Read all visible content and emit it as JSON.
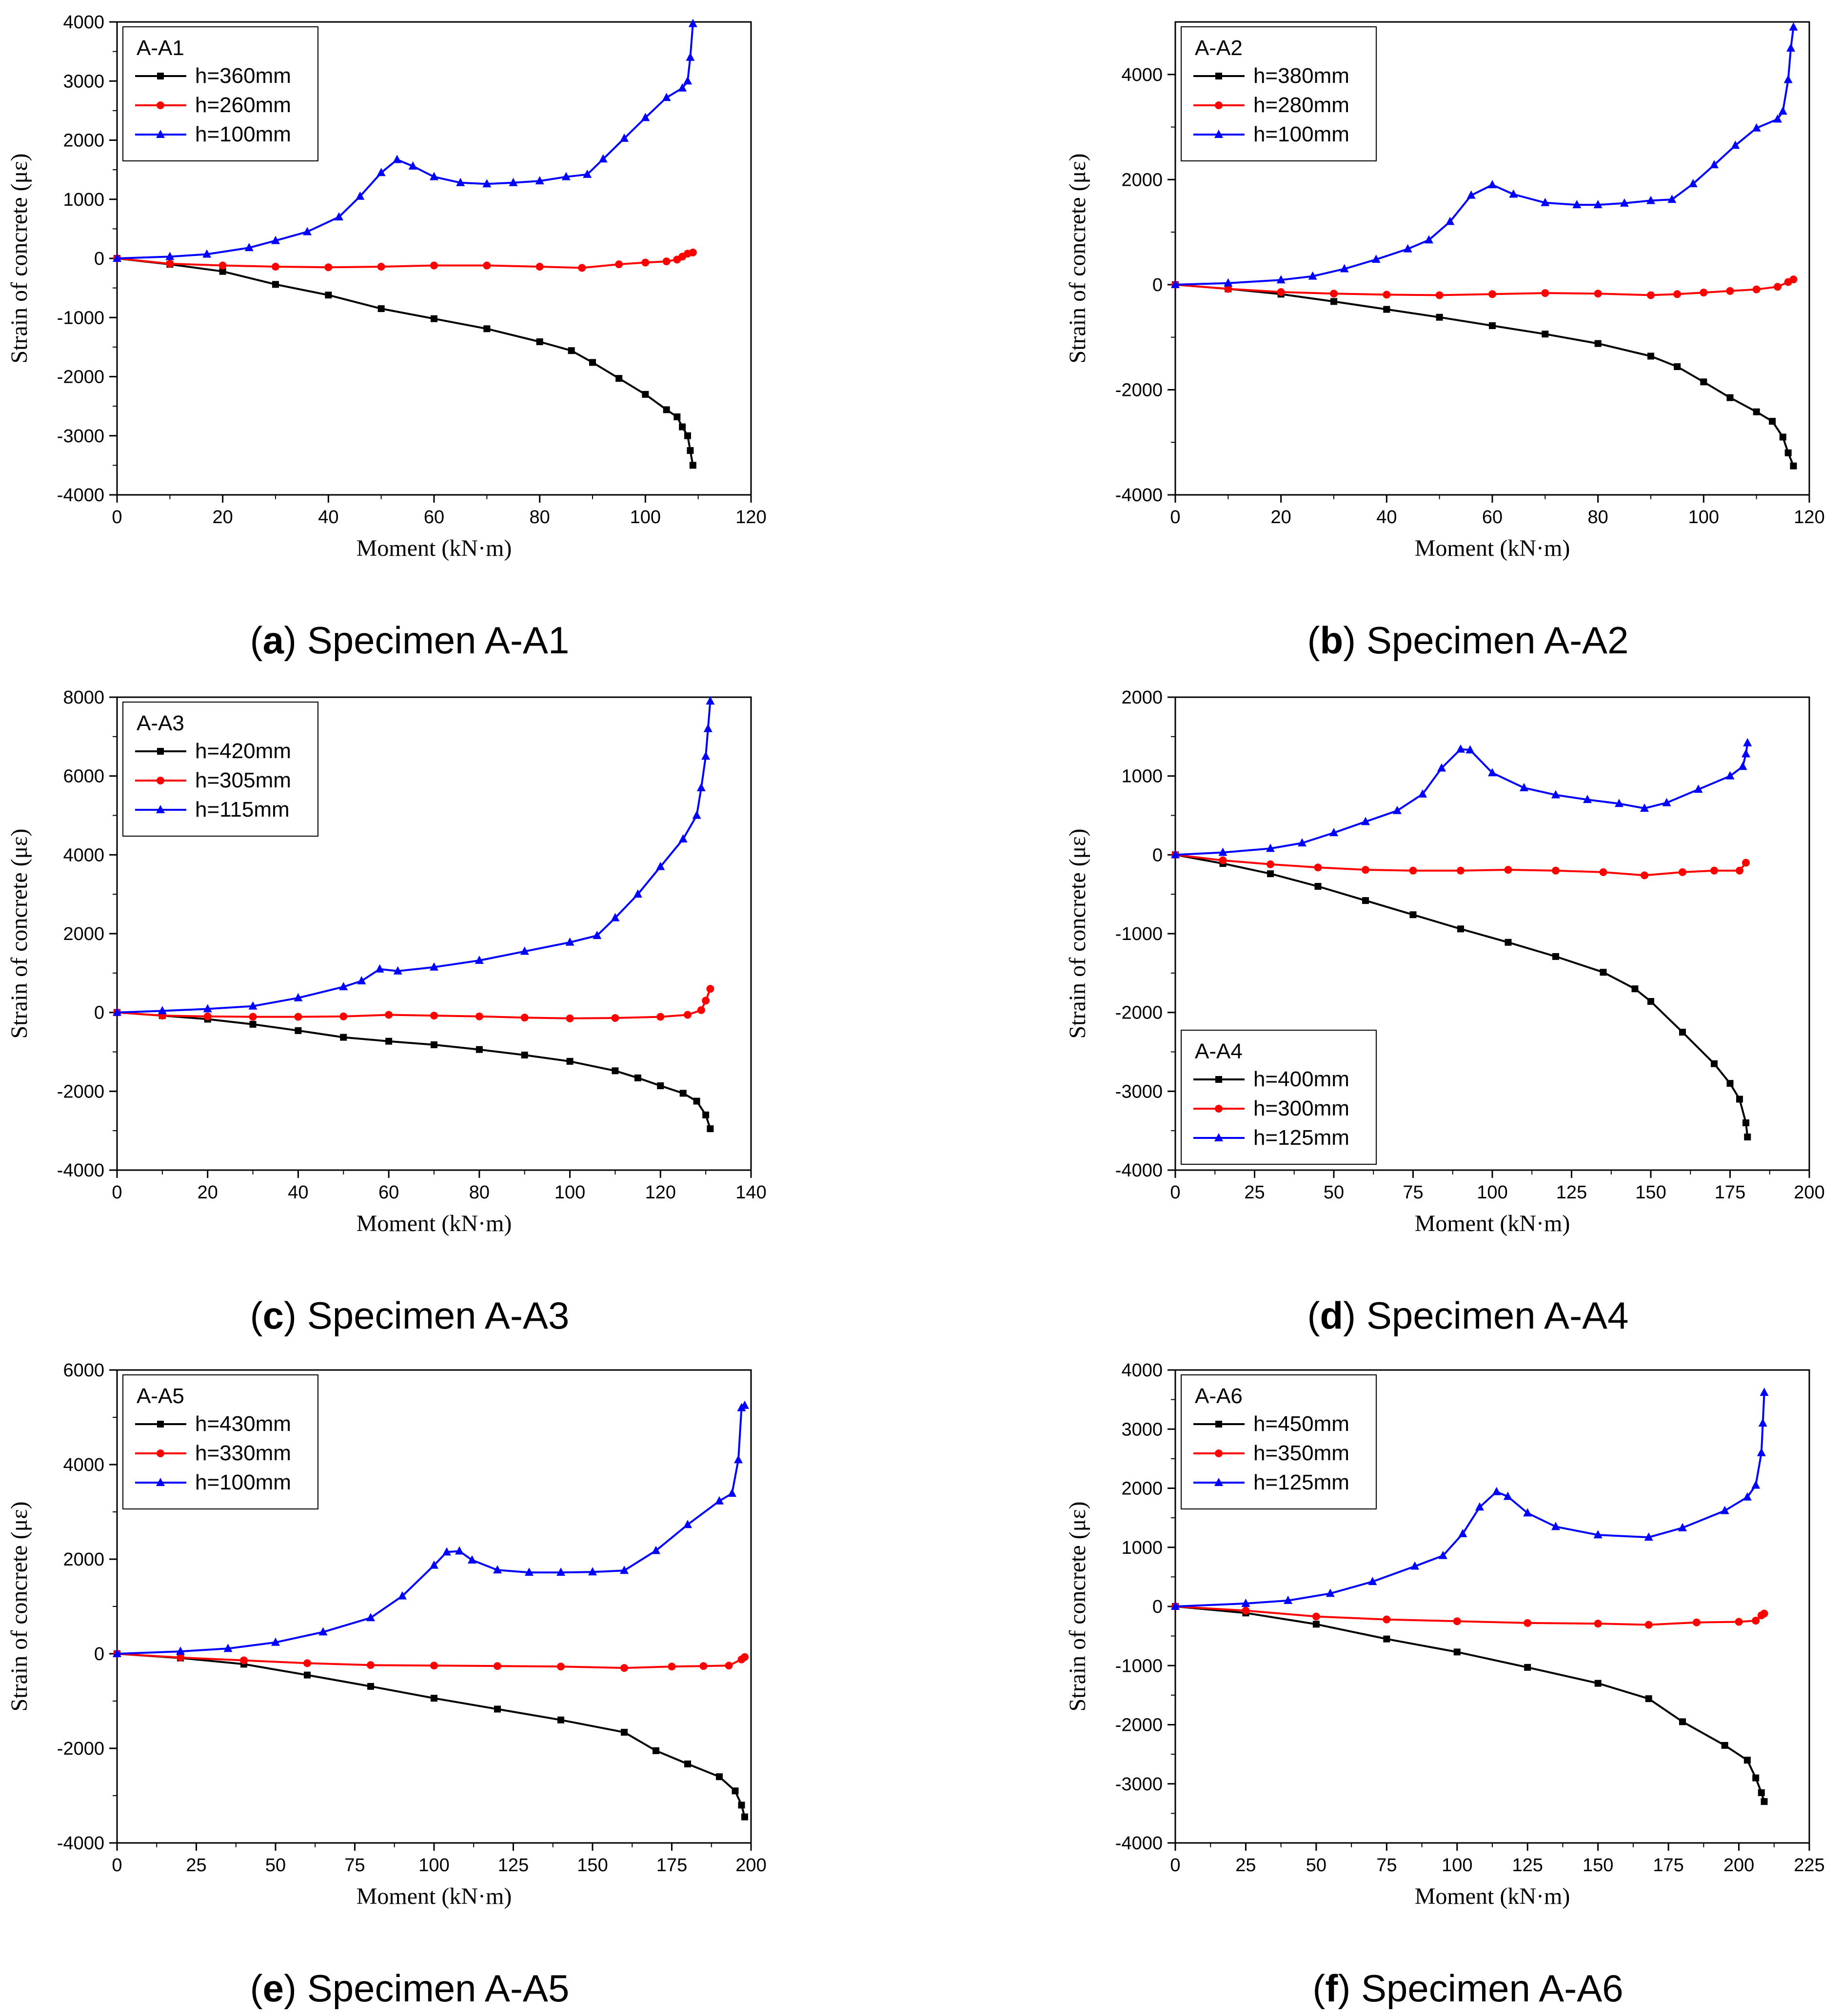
{
  "chart_data": [
    {
      "type": "line",
      "panel_label": "a",
      "caption": "Specimen A-A1",
      "title": "A-A1",
      "xlabel": "Moment (kN·m)",
      "ylabel": "Strain of concrete (με)",
      "xlim": [
        0,
        120
      ],
      "ylim": [
        -4000,
        4000
      ],
      "xticks": [
        0,
        20,
        40,
        60,
        80,
        100,
        120
      ],
      "yticks": [
        -4000,
        -3000,
        -2000,
        -1000,
        0,
        1000,
        2000,
        3000,
        4000
      ],
      "legend_position": "top-left",
      "series": [
        {
          "name": "h=360mm",
          "color": "#000000",
          "marker": "square",
          "x": [
            0,
            10,
            20,
            30,
            40,
            50,
            60,
            70,
            80,
            86,
            90,
            95,
            100,
            104,
            106,
            107,
            108,
            108.5,
            109
          ],
          "y": [
            0,
            -100,
            -220,
            -440,
            -620,
            -850,
            -1020,
            -1190,
            -1410,
            -1560,
            -1760,
            -2030,
            -2300,
            -2560,
            -2680,
            -2850,
            -3000,
            -3250,
            -3500
          ]
        },
        {
          "name": "h=260mm",
          "color": "#ff0000",
          "marker": "circle",
          "x": [
            0,
            10,
            20,
            30,
            40,
            50,
            60,
            70,
            80,
            88,
            95,
            100,
            104,
            106,
            107,
            108,
            109
          ],
          "y": [
            0,
            -90,
            -120,
            -140,
            -150,
            -140,
            -120,
            -120,
            -140,
            -160,
            -100,
            -70,
            -50,
            -20,
            30,
            80,
            100
          ]
        },
        {
          "name": "h=100mm",
          "color": "#0000ff",
          "marker": "triangle",
          "x": [
            0,
            10,
            17,
            25,
            30,
            36,
            42,
            46,
            50,
            53,
            56,
            60,
            65,
            70,
            75,
            80,
            85,
            89,
            92,
            96,
            100,
            104,
            107,
            108,
            108.5,
            109
          ],
          "y": [
            0,
            30,
            70,
            180,
            300,
            450,
            700,
            1050,
            1450,
            1670,
            1560,
            1380,
            1280,
            1260,
            1280,
            1310,
            1380,
            1420,
            1680,
            2030,
            2380,
            2720,
            2880,
            3000,
            3400,
            3970
          ]
        }
      ]
    },
    {
      "type": "line",
      "panel_label": "b",
      "caption": "Specimen A-A2",
      "title": "A-A2",
      "xlabel": "Moment (kN·m)",
      "ylabel": "Strain of concrete (με)",
      "xlim": [
        0,
        120
      ],
      "ylim": [
        -4000,
        5000
      ],
      "xticks": [
        0,
        20,
        40,
        60,
        80,
        100,
        120
      ],
      "yticks": [
        -4000,
        -2000,
        0,
        2000,
        4000
      ],
      "legend_position": "top-left",
      "series": [
        {
          "name": "h=380mm",
          "color": "#000000",
          "marker": "square",
          "x": [
            0,
            10,
            20,
            30,
            40,
            50,
            60,
            70,
            80,
            90,
            95,
            100,
            105,
            110,
            113,
            115,
            116,
            117
          ],
          "y": [
            0,
            -80,
            -180,
            -320,
            -470,
            -620,
            -780,
            -940,
            -1120,
            -1360,
            -1560,
            -1850,
            -2150,
            -2420,
            -2600,
            -2900,
            -3200,
            -3450
          ]
        },
        {
          "name": "h=280mm",
          "color": "#ff0000",
          "marker": "circle",
          "x": [
            0,
            10,
            20,
            30,
            40,
            50,
            60,
            70,
            80,
            90,
            95,
            100,
            105,
            110,
            114,
            116,
            117
          ],
          "y": [
            0,
            -80,
            -140,
            -170,
            -190,
            -200,
            -180,
            -160,
            -170,
            -200,
            -180,
            -150,
            -120,
            -90,
            -40,
            50,
            100
          ]
        },
        {
          "name": "h=100mm",
          "color": "#0000ff",
          "marker": "triangle",
          "x": [
            0,
            10,
            20,
            26,
            32,
            38,
            44,
            48,
            52,
            56,
            60,
            64,
            70,
            76,
            80,
            85,
            90,
            94,
            98,
            102,
            106,
            110,
            114,
            115,
            116,
            116.5,
            117
          ],
          "y": [
            0,
            30,
            90,
            160,
            300,
            480,
            680,
            850,
            1200,
            1700,
            1900,
            1720,
            1560,
            1520,
            1520,
            1550,
            1600,
            1620,
            1920,
            2280,
            2650,
            2980,
            3150,
            3300,
            3900,
            4500,
            4900
          ]
        }
      ]
    },
    {
      "type": "line",
      "panel_label": "c",
      "caption": "Specimen A-A3",
      "title": "A-A3",
      "xlabel": "Moment (kN·m)",
      "ylabel": "Strain of concrete (με)",
      "xlim": [
        0,
        140
      ],
      "ylim": [
        -4000,
        8000
      ],
      "xticks": [
        0,
        20,
        40,
        60,
        80,
        100,
        120,
        140
      ],
      "yticks": [
        -4000,
        -2000,
        0,
        2000,
        4000,
        6000,
        8000
      ],
      "legend_position": "top-left",
      "series": [
        {
          "name": "h=420mm",
          "color": "#000000",
          "marker": "square",
          "x": [
            0,
            10,
            20,
            30,
            40,
            50,
            60,
            70,
            80,
            90,
            100,
            110,
            115,
            120,
            125,
            128,
            130,
            131
          ],
          "y": [
            0,
            -80,
            -170,
            -300,
            -460,
            -630,
            -730,
            -820,
            -940,
            -1080,
            -1240,
            -1480,
            -1660,
            -1860,
            -2050,
            -2250,
            -2600,
            -2950
          ]
        },
        {
          "name": "h=305mm",
          "color": "#ff0000",
          "marker": "circle",
          "x": [
            0,
            10,
            20,
            30,
            40,
            50,
            60,
            70,
            80,
            90,
            100,
            110,
            120,
            126,
            129,
            130,
            131
          ],
          "y": [
            0,
            -80,
            -100,
            -110,
            -110,
            -100,
            -60,
            -80,
            -100,
            -130,
            -150,
            -140,
            -110,
            -60,
            60,
            300,
            600
          ]
        },
        {
          "name": "h=115mm",
          "color": "#0000ff",
          "marker": "triangle",
          "x": [
            0,
            10,
            20,
            30,
            40,
            50,
            54,
            58,
            62,
            70,
            80,
            90,
            100,
            106,
            110,
            115,
            120,
            125,
            128,
            129,
            130,
            130.5,
            131
          ],
          "y": [
            0,
            40,
            90,
            160,
            370,
            650,
            800,
            1100,
            1050,
            1150,
            1320,
            1550,
            1780,
            1950,
            2400,
            3000,
            3700,
            4400,
            5000,
            5700,
            6500,
            7200,
            7900
          ]
        }
      ]
    },
    {
      "type": "line",
      "panel_label": "d",
      "caption": "Specimen A-A4",
      "title": "A-A4",
      "xlabel": "Moment (kN·m)",
      "ylabel": "Strain of concrete (με)",
      "xlim": [
        0,
        200
      ],
      "ylim": [
        -4000,
        2000
      ],
      "xticks": [
        0,
        25,
        50,
        75,
        100,
        125,
        150,
        175,
        200
      ],
      "yticks": [
        -4000,
        -3000,
        -2000,
        -1000,
        0,
        1000,
        2000
      ],
      "legend_position": "bottom-left",
      "series": [
        {
          "name": "h=400mm",
          "color": "#000000",
          "marker": "square",
          "x": [
            0,
            15,
            30,
            45,
            60,
            75,
            90,
            105,
            120,
            135,
            145,
            150,
            160,
            170,
            175,
            178,
            180,
            180.5
          ],
          "y": [
            0,
            -110,
            -240,
            -400,
            -580,
            -760,
            -940,
            -1110,
            -1290,
            -1490,
            -1700,
            -1860,
            -2250,
            -2650,
            -2900,
            -3100,
            -3400,
            -3580
          ]
        },
        {
          "name": "h=300mm",
          "color": "#ff0000",
          "marker": "circle",
          "x": [
            0,
            15,
            30,
            45,
            60,
            75,
            90,
            105,
            120,
            135,
            148,
            160,
            170,
            178,
            180
          ],
          "y": [
            0,
            -70,
            -120,
            -160,
            -190,
            -200,
            -200,
            -190,
            -200,
            -220,
            -260,
            -220,
            -200,
            -200,
            -100
          ]
        },
        {
          "name": "h=125mm",
          "color": "#0000ff",
          "marker": "triangle",
          "x": [
            0,
            15,
            30,
            40,
            50,
            60,
            70,
            78,
            84,
            90,
            93,
            100,
            110,
            120,
            130,
            140,
            148,
            155,
            165,
            175,
            179,
            180,
            180.5
          ],
          "y": [
            0,
            30,
            80,
            150,
            280,
            420,
            560,
            770,
            1100,
            1340,
            1330,
            1040,
            850,
            760,
            700,
            650,
            590,
            660,
            830,
            1000,
            1120,
            1280,
            1420
          ]
        }
      ]
    },
    {
      "type": "line",
      "panel_label": "e",
      "caption": "Specimen A-A5",
      "title": "A-A5",
      "xlabel": "Moment (kN·m)",
      "ylabel": "Strain of concrete (με)",
      "xlim": [
        0,
        200
      ],
      "ylim": [
        -4000,
        6000
      ],
      "xticks": [
        0,
        25,
        50,
        75,
        100,
        125,
        150,
        175,
        200
      ],
      "yticks": [
        -4000,
        -2000,
        0,
        2000,
        4000,
        6000
      ],
      "legend_position": "top-left",
      "series": [
        {
          "name": "h=430mm",
          "color": "#000000",
          "marker": "square",
          "x": [
            0,
            20,
            40,
            60,
            80,
            100,
            120,
            140,
            160,
            170,
            180,
            190,
            195,
            197,
            198
          ],
          "y": [
            0,
            -90,
            -220,
            -450,
            -690,
            -940,
            -1170,
            -1400,
            -1660,
            -2050,
            -2330,
            -2600,
            -2900,
            -3200,
            -3450
          ]
        },
        {
          "name": "h=330mm",
          "color": "#ff0000",
          "marker": "circle",
          "x": [
            0,
            20,
            40,
            60,
            80,
            100,
            120,
            140,
            160,
            175,
            185,
            193,
            197,
            198
          ],
          "y": [
            0,
            -80,
            -140,
            -200,
            -240,
            -250,
            -260,
            -270,
            -300,
            -270,
            -260,
            -250,
            -120,
            -70
          ]
        },
        {
          "name": "h=100mm",
          "color": "#0000ff",
          "marker": "triangle",
          "x": [
            0,
            20,
            35,
            50,
            65,
            80,
            90,
            100,
            104,
            108,
            112,
            120,
            130,
            140,
            150,
            160,
            170,
            180,
            190,
            194,
            196,
            197,
            198
          ],
          "y": [
            0,
            50,
            110,
            240,
            460,
            760,
            1220,
            1870,
            2150,
            2170,
            1980,
            1770,
            1720,
            1720,
            1730,
            1760,
            2180,
            2730,
            3230,
            3390,
            4100,
            5200,
            5250
          ]
        }
      ]
    },
    {
      "type": "line",
      "panel_label": "f",
      "caption": "Specimen A-A6",
      "title": "A-A6",
      "xlabel": "Moment (kN·m)",
      "ylabel": "Strain of concrete (με)",
      "xlim": [
        0,
        225
      ],
      "ylim": [
        -4000,
        4000
      ],
      "xticks": [
        0,
        25,
        50,
        75,
        100,
        125,
        150,
        175,
        200,
        225
      ],
      "yticks": [
        -4000,
        -3000,
        -2000,
        -1000,
        0,
        1000,
        2000,
        3000,
        4000
      ],
      "legend_position": "top-left",
      "series": [
        {
          "name": "h=450mm",
          "color": "#000000",
          "marker": "square",
          "x": [
            0,
            25,
            50,
            75,
            100,
            125,
            150,
            168,
            180,
            195,
            203,
            206,
            208,
            209
          ],
          "y": [
            0,
            -110,
            -300,
            -550,
            -770,
            -1030,
            -1300,
            -1560,
            -1950,
            -2350,
            -2600,
            -2900,
            -3150,
            -3300
          ]
        },
        {
          "name": "h=350mm",
          "color": "#ff0000",
          "marker": "circle",
          "x": [
            0,
            25,
            50,
            75,
            100,
            125,
            150,
            168,
            185,
            200,
            206,
            208,
            209
          ],
          "y": [
            0,
            -70,
            -170,
            -220,
            -250,
            -280,
            -290,
            -310,
            -270,
            -260,
            -240,
            -150,
            -120
          ]
        },
        {
          "name": "h=125mm",
          "color": "#0000ff",
          "marker": "triangle",
          "x": [
            0,
            25,
            40,
            55,
            70,
            85,
            95,
            102,
            108,
            114,
            118,
            125,
            135,
            150,
            168,
            180,
            195,
            203,
            206,
            208,
            208.5,
            209
          ],
          "y": [
            0,
            50,
            100,
            220,
            420,
            680,
            860,
            1230,
            1680,
            1940,
            1860,
            1580,
            1350,
            1210,
            1170,
            1330,
            1620,
            1850,
            2050,
            2600,
            3100,
            3620
          ]
        }
      ]
    }
  ]
}
